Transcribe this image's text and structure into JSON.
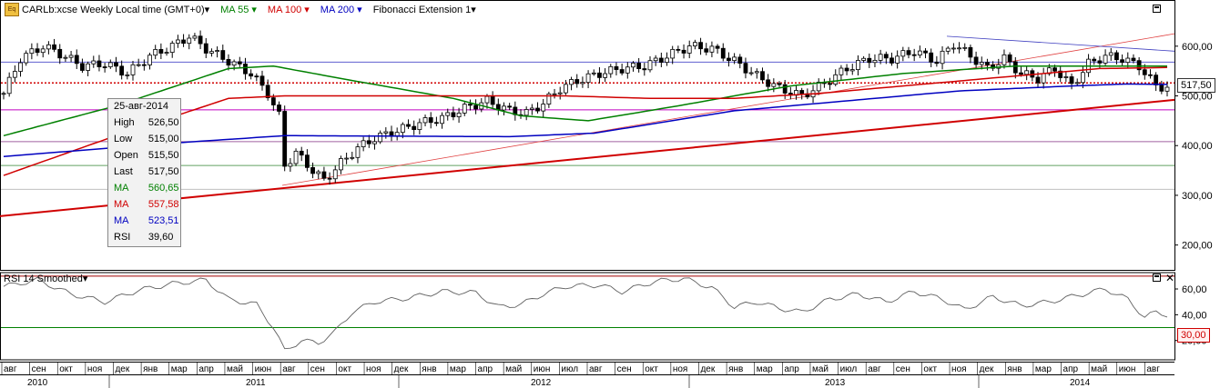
{
  "header": {
    "symbol": "CARLb:xcse Weekly Local time (GMT+0)▾",
    "ma55": "MA 55 ▾",
    "ma100": "MA 100 ▾",
    "ma200": "MA 200 ▾",
    "fib": "Fibonacci Extension 1▾",
    "logo": "Eq"
  },
  "tooltip": {
    "date": "25-авг-2014",
    "rows": [
      {
        "k": "High",
        "v": "526,50",
        "color": "#000000"
      },
      {
        "k": "Low",
        "v": "515,00",
        "color": "#000000"
      },
      {
        "k": "Open",
        "v": "515,50",
        "color": "#000000"
      },
      {
        "k": "Last",
        "v": "517,50",
        "color": "#000000"
      },
      {
        "k": "MA",
        "v": "560,65",
        "color": "#008000"
      },
      {
        "k": "MA",
        "v": "557,58",
        "color": "#d00000"
      },
      {
        "k": "MA",
        "v": "523,51",
        "color": "#0000c0"
      },
      {
        "k": "RSI",
        "v": "39,60",
        "color": "#000000"
      }
    ]
  },
  "rsi_header": "RSI 14 Smoothed▾",
  "last_price_badge": "517,50",
  "rsi_badge": "30,00",
  "colors": {
    "ma55": "#008000",
    "ma100": "#d00000",
    "ma200": "#0000c0",
    "up": "#ffffff",
    "down": "#000000"
  },
  "chart_data": {
    "type": "candlestick",
    "price_axis": {
      "ylim": [
        150,
        660
      ],
      "ticks": [
        "600,00",
        "500,00",
        "400,00",
        "300,00",
        "200,00"
      ],
      "tick_values": [
        600,
        500,
        400,
        300,
        200
      ]
    },
    "rsi_axis": {
      "ylim": [
        5,
        72
      ],
      "ticks": [
        "60,00",
        "40,00",
        "20,00"
      ],
      "tick_values": [
        60,
        40,
        20
      ]
    },
    "months": [
      "авг",
      "сен",
      "окт",
      "ноя",
      "дек",
      "янв",
      "мар",
      "апр",
      "май",
      "июн",
      "авг",
      "сен",
      "окт",
      "ноя",
      "дек",
      "янв",
      "мар",
      "апр",
      "май",
      "июн",
      "июл",
      "авг",
      "сен",
      "окт",
      "ноя",
      "дек",
      "янв",
      "мар",
      "апр",
      "май",
      "июл",
      "авг",
      "сен",
      "окт",
      "ноя",
      "дек",
      "янв",
      "мар",
      "апр",
      "май",
      "июн",
      "авг"
    ],
    "years": [
      "2010",
      "2011",
      "2012",
      "2013",
      "2014"
    ],
    "close_anchors": [
      [
        0,
        505
      ],
      [
        3,
        575
      ],
      [
        7,
        600
      ],
      [
        10,
        585
      ],
      [
        14,
        560
      ],
      [
        18,
        565
      ],
      [
        22,
        545
      ],
      [
        26,
        580
      ],
      [
        30,
        600
      ],
      [
        33,
        620
      ],
      [
        36,
        595
      ],
      [
        40,
        570
      ],
      [
        44,
        545
      ],
      [
        47,
        505
      ],
      [
        49,
        460
      ],
      [
        50,
        360
      ],
      [
        52,
        385
      ],
      [
        55,
        350
      ],
      [
        57,
        330
      ],
      [
        60,
        365
      ],
      [
        63,
        395
      ],
      [
        66,
        415
      ],
      [
        70,
        430
      ],
      [
        74,
        445
      ],
      [
        78,
        455
      ],
      [
        82,
        475
      ],
      [
        86,
        490
      ],
      [
        90,
        470
      ],
      [
        93,
        465
      ],
      [
        96,
        485
      ],
      [
        99,
        515
      ],
      [
        102,
        530
      ],
      [
        106,
        545
      ],
      [
        110,
        555
      ],
      [
        114,
        560
      ],
      [
        118,
        580
      ],
      [
        122,
        600
      ],
      [
        126,
        595
      ],
      [
        130,
        570
      ],
      [
        134,
        540
      ],
      [
        138,
        515
      ],
      [
        142,
        500
      ],
      [
        146,
        525
      ],
      [
        150,
        555
      ],
      [
        154,
        575
      ],
      [
        158,
        575
      ],
      [
        162,
        590
      ],
      [
        166,
        570
      ],
      [
        169,
        605
      ],
      [
        172,
        580
      ],
      [
        175,
        555
      ],
      [
        178,
        575
      ],
      [
        181,
        545
      ],
      [
        184,
        535
      ],
      [
        187,
        555
      ],
      [
        190,
        520
      ],
      [
        193,
        565
      ],
      [
        196,
        580
      ],
      [
        199,
        575
      ],
      [
        202,
        560
      ],
      [
        205,
        520
      ],
      [
        207,
        517
      ]
    ],
    "ma55_anchors": [
      [
        0,
        420
      ],
      [
        20,
        480
      ],
      [
        40,
        555
      ],
      [
        48,
        560
      ],
      [
        60,
        535
      ],
      [
        80,
        495
      ],
      [
        92,
        460
      ],
      [
        104,
        450
      ],
      [
        120,
        480
      ],
      [
        140,
        520
      ],
      [
        160,
        545
      ],
      [
        180,
        560
      ],
      [
        207,
        560
      ]
    ],
    "ma100_anchors": [
      [
        0,
        340
      ],
      [
        20,
        420
      ],
      [
        40,
        495
      ],
      [
        50,
        500
      ],
      [
        80,
        500
      ],
      [
        100,
        500
      ],
      [
        115,
        495
      ],
      [
        130,
        495
      ],
      [
        145,
        505
      ],
      [
        165,
        525
      ],
      [
        185,
        545
      ],
      [
        195,
        555
      ],
      [
        207,
        557
      ]
    ],
    "ma200_anchors": [
      [
        0,
        378
      ],
      [
        30,
        405
      ],
      [
        50,
        420
      ],
      [
        90,
        418
      ],
      [
        105,
        425
      ],
      [
        130,
        470
      ],
      [
        150,
        490
      ],
      [
        170,
        510
      ],
      [
        190,
        520
      ],
      [
        200,
        524
      ],
      [
        207,
        523
      ]
    ],
    "rsi_anchors": [
      [
        0,
        62
      ],
      [
        6,
        67
      ],
      [
        12,
        56
      ],
      [
        18,
        50
      ],
      [
        24,
        59
      ],
      [
        30,
        64
      ],
      [
        36,
        67
      ],
      [
        40,
        52
      ],
      [
        45,
        48
      ],
      [
        48,
        30
      ],
      [
        50,
        12
      ],
      [
        53,
        20
      ],
      [
        56,
        18
      ],
      [
        59,
        27
      ],
      [
        62,
        42
      ],
      [
        66,
        50
      ],
      [
        72,
        53
      ],
      [
        78,
        58
      ],
      [
        84,
        57
      ],
      [
        88,
        46
      ],
      [
        92,
        48
      ],
      [
        96,
        56
      ],
      [
        100,
        62
      ],
      [
        106,
        63
      ],
      [
        110,
        58
      ],
      [
        116,
        66
      ],
      [
        121,
        68
      ],
      [
        126,
        61
      ],
      [
        130,
        46
      ],
      [
        134,
        50
      ],
      [
        138,
        45
      ],
      [
        142,
        42
      ],
      [
        147,
        52
      ],
      [
        152,
        56
      ],
      [
        157,
        50
      ],
      [
        162,
        58
      ],
      [
        167,
        52
      ],
      [
        171,
        44
      ],
      [
        176,
        54
      ],
      [
        181,
        47
      ],
      [
        186,
        50
      ],
      [
        191,
        55
      ],
      [
        196,
        60
      ],
      [
        200,
        52
      ],
      [
        203,
        38
      ],
      [
        205,
        42
      ],
      [
        207,
        40
      ]
    ],
    "hlines_price": [
      {
        "v": 568,
        "c": "#6060d0"
      },
      {
        "v": 526,
        "c": "#d00000",
        "dash": true
      },
      {
        "v": 472,
        "c": "#c000c0"
      },
      {
        "v": 408,
        "c": "#a060a0"
      },
      {
        "v": 360,
        "c": "#60a060"
      },
      {
        "v": 312,
        "c": "#c0c0c0"
      }
    ],
    "hlines_rsi": [
      {
        "v": 70,
        "c": "#a00000"
      },
      {
        "v": 30,
        "c": "#008000"
      }
    ]
  }
}
